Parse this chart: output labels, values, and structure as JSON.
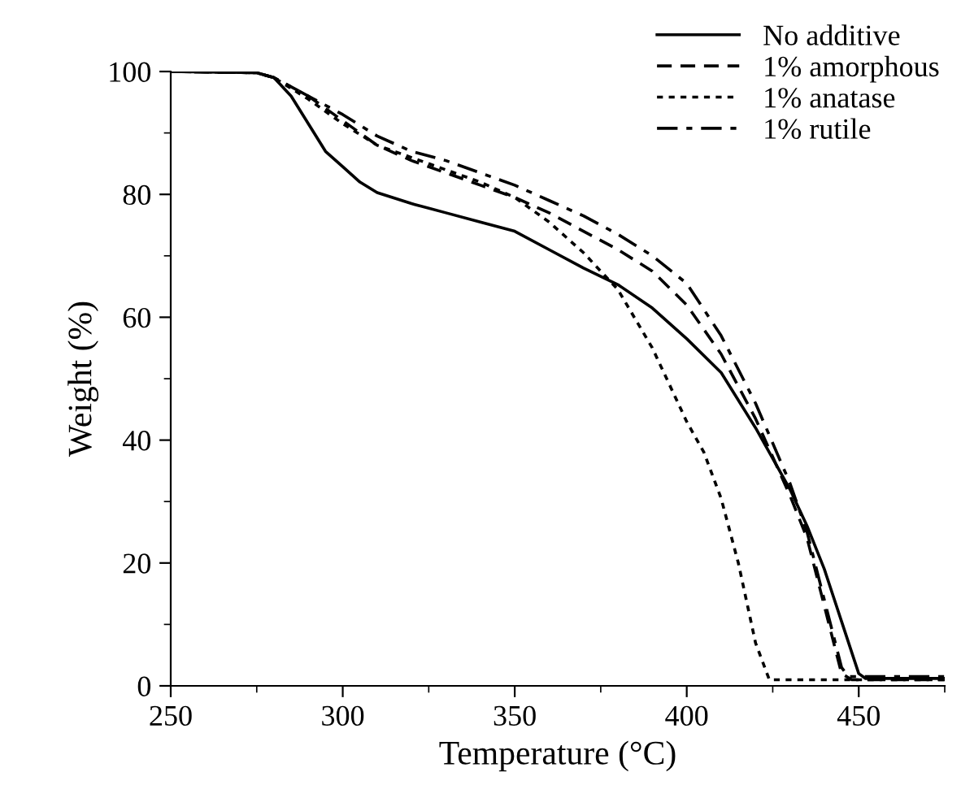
{
  "chart_data": {
    "type": "line",
    "xlabel": "Temperature (°C)",
    "ylabel": "Weight (%)",
    "xlim": [
      250,
      475
    ],
    "ylim": [
      0,
      100
    ],
    "xticks": [
      250,
      {
        "value": 275,
        "label": null
      },
      300,
      {
        "value": 325,
        "label": null
      },
      350,
      {
        "value": 375,
        "label": null
      },
      400,
      {
        "value": 425,
        "label": null
      },
      450,
      {
        "value": 475,
        "label": null
      }
    ],
    "yticks": [
      0,
      {
        "value": 10,
        "label": null
      },
      20,
      {
        "value": 30,
        "label": null
      },
      40,
      {
        "value": 50,
        "label": null
      },
      60,
      {
        "value": 70,
        "label": null
      },
      80,
      {
        "value": 90,
        "label": null
      },
      100
    ],
    "grid": false,
    "legend": "top right",
    "marker": "none",
    "series": [
      {
        "name": "No additive",
        "color": "#000000",
        "line_style": "solid",
        "x": [
          250,
          275,
          280,
          285,
          290,
          295,
          300,
          305,
          310,
          320,
          330,
          340,
          350,
          360,
          370,
          380,
          390,
          400,
          410,
          420,
          430,
          435,
          440,
          445,
          450,
          452,
          475
        ],
        "values": [
          100,
          99.8,
          99,
          96,
          91.5,
          87,
          84.5,
          82,
          80.3,
          78.5,
          77,
          75.5,
          74,
          71,
          68,
          65.3,
          61.5,
          56.5,
          51,
          42,
          32,
          26,
          19,
          10.5,
          2,
          1.2,
          1.2
        ]
      },
      {
        "name": "1% amorphous",
        "color": "#000000",
        "line_style": "dashed",
        "x": [
          250,
          275,
          280,
          290,
          300,
          310,
          320,
          330,
          340,
          350,
          360,
          370,
          380,
          390,
          400,
          410,
          420,
          430,
          435,
          440,
          445,
          448,
          475
        ],
        "values": [
          100,
          99.8,
          99,
          96,
          92,
          88,
          85.5,
          83.5,
          81.5,
          79.5,
          77,
          74,
          71,
          67.5,
          62,
          54,
          43.5,
          31,
          24,
          13,
          2,
          1,
          1
        ]
      },
      {
        "name": "1% anatase",
        "color": "#000000",
        "line_style": "dotted",
        "x": [
          250,
          275,
          280,
          290,
          300,
          310,
          320,
          330,
          340,
          350,
          360,
          370,
          380,
          390,
          400,
          405,
          410,
          415,
          420,
          424,
          475
        ],
        "values": [
          100,
          99.8,
          99,
          95.5,
          91.5,
          88,
          86,
          84,
          82,
          79.5,
          75.5,
          70.5,
          64.5,
          55,
          43,
          38,
          30.5,
          20,
          7,
          1,
          1
        ]
      },
      {
        "name": "1% rutile",
        "color": "#000000",
        "line_style": "dashdot",
        "x": [
          250,
          275,
          280,
          290,
          300,
          310,
          320,
          330,
          340,
          350,
          360,
          370,
          380,
          390,
          400,
          410,
          420,
          430,
          435,
          440,
          445,
          447,
          475
        ],
        "values": [
          100,
          99.8,
          99,
          96,
          93,
          89.5,
          87,
          85.5,
          83.5,
          81.5,
          79,
          76.5,
          73.5,
          70,
          65.5,
          57,
          46,
          33,
          25,
          14,
          3,
          1.5,
          1.5
        ]
      }
    ]
  }
}
